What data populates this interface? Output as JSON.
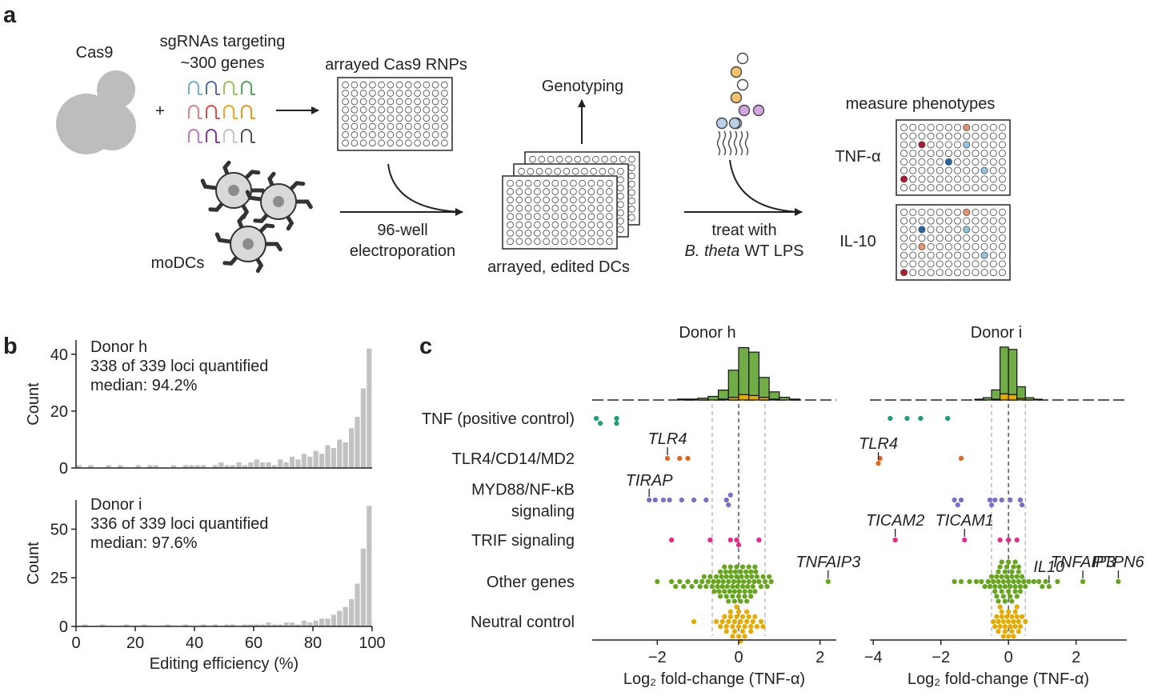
{
  "panel_labels": [
    "a",
    "b",
    "c"
  ],
  "diagram": {
    "cas9": "Cas9",
    "sgrna_line1": "sgRNAs targeting",
    "sgrna_line2": "~300 genes",
    "plus": "+",
    "rnps": "arrayed Cas9 RNPs",
    "modcs": "moDCs",
    "electro_line1": "96-well",
    "electro_line2": "electroporation",
    "genotyping": "Genotyping",
    "edited": "arrayed, edited DCs",
    "treat": "treat with",
    "lps_italic": "B. theta",
    "lps_rest": "WT LPS",
    "measure": "measure phenotypes",
    "tnf": "TNF-α",
    "il10": "IL-10"
  },
  "chart_data": [
    {
      "type": "histogram",
      "annotations": [
        "Donor h",
        "338 of 339 loci quantified",
        "median: 94.2%"
      ],
      "ylabel": "Count",
      "color": "#c2c2c2",
      "bins": [
        0,
        2,
        4,
        6,
        8,
        10,
        12,
        14,
        16,
        18,
        20,
        22,
        24,
        26,
        28,
        30,
        32,
        34,
        36,
        38,
        40,
        42,
        44,
        46,
        48,
        50,
        52,
        54,
        56,
        58,
        60,
        62,
        64,
        66,
        68,
        70,
        72,
        74,
        76,
        78,
        80,
        82,
        84,
        86,
        88,
        90,
        92,
        94,
        96,
        98,
        100
      ],
      "values": [
        1,
        0,
        1,
        0,
        0,
        1,
        0,
        1,
        0,
        0,
        1,
        0,
        1,
        1,
        0,
        0,
        1,
        0,
        1,
        1,
        1,
        1,
        0,
        1,
        2,
        1,
        1,
        2,
        1,
        2,
        3,
        2,
        2,
        1,
        3,
        2,
        4,
        3,
        5,
        4,
        6,
        5,
        8,
        7,
        10,
        9,
        14,
        18,
        28,
        42
      ],
      "xlim": [
        0,
        100
      ],
      "ylim": [
        0,
        45
      ],
      "yticks": [
        0,
        20,
        40
      ]
    },
    {
      "type": "histogram",
      "annotations": [
        "Donor i",
        "336 of 339 loci quantified",
        "median: 97.6%"
      ],
      "ylabel": "Count",
      "xlabel": "Editing efficiency (%)",
      "color": "#c2c2c2",
      "bins": [
        0,
        2,
        4,
        6,
        8,
        10,
        12,
        14,
        16,
        18,
        20,
        22,
        24,
        26,
        28,
        30,
        32,
        34,
        36,
        38,
        40,
        42,
        44,
        46,
        48,
        50,
        52,
        54,
        56,
        58,
        60,
        62,
        64,
        66,
        68,
        70,
        72,
        74,
        76,
        78,
        80,
        82,
        84,
        86,
        88,
        90,
        92,
        94,
        96,
        98,
        100
      ],
      "values": [
        0,
        1,
        0,
        0,
        1,
        0,
        0,
        0,
        1,
        0,
        0,
        1,
        0,
        0,
        0,
        1,
        0,
        0,
        1,
        0,
        0,
        1,
        0,
        1,
        0,
        1,
        1,
        0,
        1,
        1,
        1,
        1,
        2,
        1,
        1,
        2,
        2,
        1,
        3,
        2,
        3,
        4,
        4,
        6,
        8,
        10,
        14,
        22,
        40,
        62
      ],
      "xlim": [
        0,
        100
      ],
      "xticks": [
        0,
        20,
        40,
        60,
        80,
        100
      ],
      "ylim": [
        0,
        65
      ],
      "yticks": [
        0,
        25,
        50
      ]
    },
    {
      "type": "swarm",
      "title": "Donor h",
      "xlabel": "Log₂ fold-change (TNF-α)",
      "xlim": [
        -3.6,
        2.4
      ],
      "xticks": [
        {
          "value": -2,
          "label": "−2"
        },
        0,
        2
      ],
      "threshold_lines": [
        -0.65,
        0,
        0.65
      ],
      "hist_bins": [
        -1.5,
        -1.25,
        -1,
        -0.75,
        -0.5,
        -0.25,
        0,
        0.25,
        0.5,
        0.75,
        1,
        1.25,
        1.5
      ],
      "hist_other": [
        1,
        1,
        2,
        4,
        10,
        30,
        52,
        48,
        22,
        8,
        3,
        1
      ],
      "hist_neutral": [
        0,
        0,
        0,
        0,
        1,
        3,
        6,
        5,
        3,
        1,
        0,
        0
      ],
      "hist_ylim": [
        0,
        62
      ],
      "series": [
        {
          "name": "TNF (positive control)",
          "color": "#1b9e77",
          "values": [
            -3.5,
            -3.4,
            -3.0,
            -3.0
          ],
          "labeled_points": []
        },
        {
          "name": "TLR4/CD14/MD2",
          "color": "#e0661f",
          "values": [
            -1.45,
            -1.25
          ],
          "labeled_points": [
            {
              "label": "TLR4",
              "value": -1.75
            }
          ]
        },
        {
          "name": "MYD88/NF-κB\nsignaling",
          "color": "#7570c9",
          "values": [
            -2.05,
            -1.85,
            -1.7,
            -1.4,
            -1.1,
            -0.8,
            -0.3,
            -0.25,
            -0.2
          ],
          "labeled_points": [
            {
              "label": "TIRAP",
              "value": -2.2
            }
          ]
        },
        {
          "name": "TRIF signaling",
          "color": "#e7298a",
          "values": [
            -1.65,
            -0.7,
            -0.2,
            -0.05,
            0,
            0.5
          ],
          "labeled_points": []
        },
        {
          "name": "Other genes",
          "color": "#66a61e",
          "values": [
            -2.0,
            -1.65,
            -1.55,
            -1.45,
            -1.35,
            -1.25,
            -1.15,
            -1.05,
            -0.95,
            -0.9,
            -0.85,
            -0.8,
            -0.75,
            -0.7,
            -0.65,
            -0.62,
            -0.6,
            -0.55,
            -0.52,
            -0.5,
            -0.48,
            -0.45,
            -0.42,
            -0.4,
            -0.38,
            -0.35,
            -0.32,
            -0.3,
            -0.28,
            -0.25,
            -0.22,
            -0.2,
            -0.18,
            -0.15,
            -0.12,
            -0.1,
            -0.08,
            -0.05,
            -0.03,
            0,
            0.02,
            0.05,
            0.07,
            0.1,
            0.12,
            0.15,
            0.18,
            0.2,
            0.22,
            0.25,
            0.28,
            0.3,
            0.32,
            0.35,
            0.38,
            0.4,
            0.42,
            0.45,
            0.5,
            0.55,
            0.6,
            0.65,
            0.7,
            0.75,
            0.8,
            -0.45,
            -0.3,
            -0.15,
            0,
            0.15,
            0.3,
            -0.35,
            -0.2,
            -0.05,
            0.1,
            0.25,
            0.4,
            -0.25,
            -0.1,
            0.05,
            0.2
          ],
          "labeled_points": [
            {
              "label": "TNFAIP3",
              "value": 2.2
            }
          ]
        },
        {
          "name": "Neutral control",
          "color": "#e6ab02",
          "values": [
            -1.1,
            -0.55,
            -0.45,
            -0.4,
            -0.35,
            -0.3,
            -0.25,
            -0.2,
            -0.15,
            -0.1,
            -0.05,
            0,
            0.05,
            0.1,
            0.15,
            0.2,
            0.25,
            0.3,
            0.35,
            0.4,
            0.45,
            0.55,
            0.6,
            -0.3,
            -0.2,
            -0.1,
            0,
            0.1,
            0.2,
            0.3,
            -0.15,
            0,
            0.15,
            -0.05,
            0.05
          ],
          "labeled_points": []
        }
      ]
    },
    {
      "type": "swarm",
      "title": "Donor i",
      "xlabel": "Log₂ fold-change (TNF-α)",
      "xlim": [
        -4.1,
        3.5
      ],
      "xticks": [
        {
          "value": -4,
          "label": "−4"
        },
        {
          "value": -2,
          "label": "−2"
        },
        0,
        2
      ],
      "threshold_lines": [
        -0.5,
        0,
        0.5
      ],
      "hist_bins": [
        -1,
        -0.75,
        -0.5,
        -0.25,
        0,
        0.25,
        0.5,
        0.75,
        1
      ],
      "hist_other": [
        1,
        3,
        12,
        60,
        58,
        15,
        3,
        1
      ],
      "hist_neutral": [
        0,
        0,
        1,
        8,
        7,
        2,
        0,
        0
      ],
      "hist_ylim": [
        0,
        72
      ],
      "series": [
        {
          "color": "#1b9e77",
          "values": [
            -3.5,
            -3.0,
            -2.6,
            -1.8
          ],
          "labeled_points": []
        },
        {
          "color": "#e0661f",
          "values": [
            -3.8,
            -1.4
          ],
          "labeled_points": [
            {
              "label": "TLR4",
              "value": -3.85
            }
          ]
        },
        {
          "color": "#7570c9",
          "values": [
            -1.6,
            -1.5,
            -1.4,
            -0.55,
            -0.5,
            -0.4,
            -0.2,
            0.05,
            0.35,
            0.4
          ],
          "labeled_points": []
        },
        {
          "color": "#e7298a",
          "values": [
            -0.25,
            0,
            0.25
          ],
          "labeled_points": [
            {
              "label": "TICAM2",
              "value": -3.35
            },
            {
              "label": "TICAM1",
              "value": -1.3
            }
          ]
        },
        {
          "color": "#66a61e",
          "values": [
            -1.6,
            -1.4,
            -1.15,
            -0.95,
            -0.8,
            -0.7,
            -0.6,
            -0.55,
            -0.5,
            -0.45,
            -0.4,
            -0.35,
            -0.3,
            -0.25,
            -0.2,
            -0.15,
            -0.1,
            -0.05,
            0,
            0.05,
            0.1,
            0.15,
            0.2,
            0.25,
            0.3,
            0.35,
            0.4,
            0.45,
            0.5,
            0.6,
            0.75,
            0.9,
            1.0,
            1.1,
            1.45,
            -0.4,
            -0.3,
            -0.2,
            -0.1,
            0,
            0.1,
            0.2,
            0.3,
            -0.35,
            -0.25,
            -0.15,
            -0.05,
            0.05,
            0.15,
            0.25,
            0.35,
            -0.3,
            -0.1,
            0.1,
            0.3,
            -0.2,
            0,
            0.2
          ],
          "labeled_points": [
            {
              "label": "IL10",
              "value": 1.2
            },
            {
              "label": "TNFAIP3",
              "value": 2.2
            },
            {
              "label": "PTPN6",
              "value": 3.25
            }
          ]
        },
        {
          "color": "#e6ab02",
          "values": [
            -0.45,
            -0.4,
            -0.35,
            -0.3,
            -0.25,
            -0.2,
            -0.15,
            -0.1,
            -0.05,
            0,
            0.05,
            0.1,
            0.15,
            0.2,
            0.25,
            0.3,
            0.35,
            0.4,
            0.5,
            -0.3,
            -0.2,
            -0.1,
            0,
            0.1,
            0.2,
            0.3,
            -0.15,
            0,
            0.15,
            -0.25,
            0.25
          ],
          "labeled_points": []
        }
      ]
    }
  ]
}
